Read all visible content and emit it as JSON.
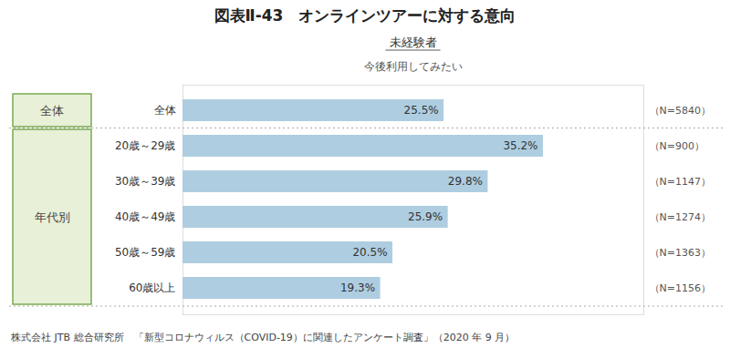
{
  "chart_data": {
    "type": "bar",
    "orientation": "horizontal",
    "title": "図表Ⅱ-43　オンラインツアーに対する意向",
    "annotations": [
      "未経験者",
      "今後利用してみたい"
    ],
    "categories": [
      "全体",
      "20歳～29歳",
      "30歳～39歳",
      "40歳～49歳",
      "50歳～59歳",
      "60歳以上"
    ],
    "values": [
      25.5,
      35.2,
      29.8,
      25.9,
      20.5,
      19.3
    ],
    "value_labels": [
      "25.5%",
      "35.2%",
      "29.8%",
      "25.9%",
      "20.5%",
      "19.3%"
    ],
    "n_labels": [
      "（N=5840）",
      "（N=900）",
      "（N=1147）",
      "（N=1274）",
      "（N=1363）",
      "（N=1156）"
    ],
    "groups": [
      {
        "label": "全体",
        "categories": [
          "全体"
        ]
      },
      {
        "label": "年代別",
        "categories": [
          "20歳～29歳",
          "30歳～39歳",
          "40歳～49歳",
          "50歳～59歳",
          "60歳以上"
        ]
      }
    ],
    "color": "#aecde0",
    "xlim": [
      0,
      45
    ],
    "data_labels": true,
    "tick_labels": false,
    "grid": false,
    "footer": "株式会社 JTB 総合研究所　「新型コロナウィルス（COVID-19）に関連したアンケート調査」（2020 年 9 月）"
  }
}
